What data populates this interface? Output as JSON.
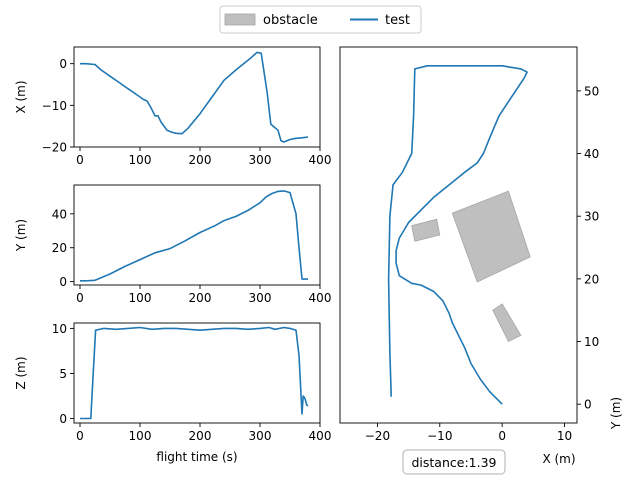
{
  "legend": {
    "items": [
      {
        "label": "obstacle",
        "kind": "patch",
        "color": "#bfbfbf"
      },
      {
        "label": "test",
        "kind": "line",
        "color": "#1f77b4"
      }
    ],
    "placement": "top-center"
  },
  "annotation": {
    "text": "distance:1.39"
  },
  "chart_data": [
    {
      "type": "line",
      "ylabel": "X (m)",
      "xlabel": "",
      "xlim": [
        -10,
        400
      ],
      "ylim": [
        -20,
        4
      ],
      "xticks": [
        0,
        100,
        200,
        300,
        400
      ],
      "yticks": [
        0,
        -10,
        -20
      ],
      "series": [
        {
          "name": "test",
          "color": "#1f77b4",
          "x": [
            0,
            10,
            25,
            35,
            50,
            65,
            80,
            95,
            105,
            112,
            118,
            125,
            130,
            135,
            145,
            152,
            160,
            170,
            180,
            200,
            220,
            240,
            260,
            280,
            295,
            302,
            312,
            318,
            330,
            335,
            340,
            350,
            360,
            370,
            380
          ],
          "y": [
            0,
            0,
            -0.2,
            -1.5,
            -3,
            -4.5,
            -6,
            -7.5,
            -8.5,
            -9,
            -10.5,
            -12.5,
            -12.5,
            -14,
            -16,
            -16.4,
            -16.7,
            -16.8,
            -15.5,
            -12,
            -8,
            -4,
            -1.5,
            0.8,
            2.7,
            2.5,
            -7,
            -14.5,
            -16,
            -18.5,
            -18.8,
            -18.2,
            -17.9,
            -17.8,
            -17.6
          ]
        }
      ]
    },
    {
      "type": "line",
      "ylabel": "Y (m)",
      "xlabel": "",
      "xlim": [
        -10,
        400
      ],
      "ylim": [
        -2,
        57
      ],
      "xticks": [
        0,
        100,
        200,
        300,
        400
      ],
      "yticks": [
        0,
        20,
        40
      ],
      "series": [
        {
          "name": "test",
          "color": "#1f77b4",
          "x": [
            0,
            10,
            25,
            50,
            75,
            100,
            125,
            150,
            175,
            200,
            225,
            240,
            260,
            280,
            300,
            310,
            320,
            330,
            340,
            350,
            360,
            365,
            370,
            380
          ],
          "y": [
            0.5,
            0.5,
            0.8,
            4.5,
            9,
            13,
            17,
            19.5,
            24,
            29,
            33,
            36,
            38.5,
            42,
            46.5,
            50,
            52,
            53.2,
            53.5,
            52.5,
            40,
            20,
            1.5,
            1.5
          ]
        }
      ]
    },
    {
      "type": "line",
      "ylabel": "Z (m)",
      "xlabel": "flight time (s)",
      "xlim": [
        -10,
        400
      ],
      "ylim": [
        -0.5,
        10.6
      ],
      "xticks": [
        0,
        100,
        200,
        300,
        400
      ],
      "yticks": [
        0,
        5,
        10
      ],
      "series": [
        {
          "name": "test",
          "color": "#1f77b4",
          "x": [
            0,
            10,
            18,
            22,
            26,
            40,
            60,
            80,
            100,
            120,
            140,
            160,
            180,
            200,
            220,
            240,
            260,
            280,
            300,
            315,
            325,
            340,
            350,
            360,
            365,
            370,
            372,
            375,
            378,
            380
          ],
          "y": [
            0,
            0,
            0,
            5,
            9.8,
            10.0,
            9.9,
            10.0,
            10.1,
            9.9,
            10.0,
            10.0,
            9.9,
            9.8,
            9.9,
            10.0,
            10.0,
            9.9,
            10.0,
            10.1,
            9.9,
            10.1,
            10.0,
            9.8,
            7,
            0.5,
            2.5,
            2.2,
            1.5,
            1.4
          ]
        }
      ]
    },
    {
      "type": "line",
      "xlabel": "X (m)",
      "ylabel": "Y (m)",
      "xlim": [
        -26,
        12
      ],
      "ylim": [
        -3,
        57
      ],
      "xticks": [
        -20,
        -10,
        0,
        10
      ],
      "yticks": [
        0,
        10,
        20,
        30,
        40,
        50
      ],
      "series": [
        {
          "name": "test",
          "color": "#1f77b4",
          "x": [
            0,
            -2,
            -3.5,
            -5,
            -6,
            -7,
            -8,
            -8.5,
            -9.5,
            -11,
            -13,
            -14.5,
            -16.5,
            -17,
            -17,
            -16.5,
            -15,
            -13,
            -11,
            -8.5,
            -6,
            -4,
            -3,
            -2,
            -0.5,
            1.5,
            3.5,
            4,
            3,
            0,
            -4,
            -8,
            -12,
            -14,
            -14.2,
            -14.5,
            -16,
            -17.5,
            -18,
            -18.2,
            -18,
            -17.8,
            -17.8
          ],
          "y": [
            0,
            2,
            4,
            6.5,
            9,
            11,
            13,
            14.5,
            16.5,
            18,
            19,
            19.3,
            20.5,
            22.5,
            24.5,
            26.5,
            29,
            31,
            33,
            35,
            37,
            38.5,
            40,
            42.5,
            46,
            49,
            52,
            53,
            53.5,
            54,
            54,
            54,
            54,
            53.5,
            46,
            40,
            37,
            35,
            30,
            20,
            8,
            2,
            1.2
          ]
        },
        {
          "name": "obstacle",
          "color": "#bfbfbf",
          "kind": "polygon",
          "points": [
            [
              -8,
              30.5
            ],
            [
              1,
              34
            ],
            [
              4.5,
              23.5
            ],
            [
              -4,
              19.5
            ]
          ]
        },
        {
          "name": "obstacle",
          "color": "#bfbfbf",
          "kind": "polygon",
          "points": [
            [
              -14.5,
              28.5
            ],
            [
              -10.5,
              29.5
            ],
            [
              -10,
              27
            ],
            [
              -14,
              26
            ]
          ]
        },
        {
          "name": "obstacle",
          "color": "#bfbfbf",
          "kind": "polygon",
          "points": [
            [
              -1.5,
              15
            ],
            [
              0,
              16
            ],
            [
              3,
              11
            ],
            [
              1,
              10
            ]
          ]
        }
      ]
    }
  ]
}
